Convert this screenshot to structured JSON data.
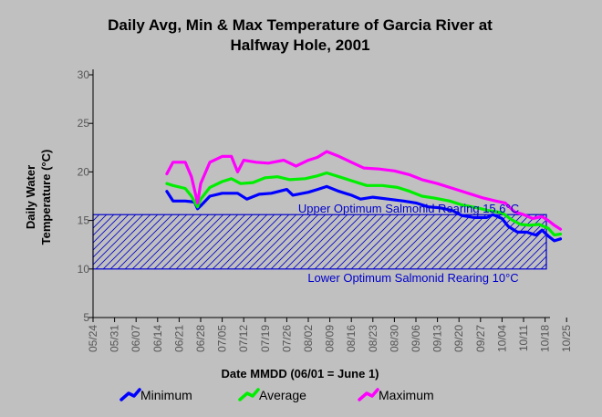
{
  "chart_data": {
    "type": "line",
    "title_line1": "Daily Avg, Min & Max Temperature of Garcia River at",
    "title_line2": "Halfway Hole, 2001",
    "xlabel": "Date MMDD (06/01 = June 1)",
    "ylabel_line1": "Daily Water",
    "ylabel_line2": "Temperature (°C)",
    "ylim": [
      5,
      30
    ],
    "yticks": [
      5,
      10,
      15,
      20,
      25,
      30
    ],
    "x_start": "05/24",
    "xtick_labels": [
      "05/24",
      "05/31",
      "06/07",
      "06/14",
      "06/21",
      "06/28",
      "07/05",
      "07/12",
      "07/19",
      "07/26",
      "08/02",
      "08/09",
      "08/16",
      "08/23",
      "08/30",
      "09/06",
      "09/13",
      "09/20",
      "09/27",
      "10/04",
      "10/11",
      "10/18",
      "10/25"
    ],
    "grid": false,
    "legend_position": "bottom",
    "band": {
      "upper": 15.6,
      "lower": 10,
      "upper_label": "Upper Optimum Salmonid Rearing 15.6°C",
      "lower_label": "Lower Optimum Salmonid Rearing 10°C",
      "color": "#0000cc"
    },
    "series": [
      {
        "name": "Minimum",
        "color": "#0000ff",
        "points": [
          [
            "06/17",
            18.0
          ],
          [
            "06/19",
            17.0
          ],
          [
            "06/23",
            17.0
          ],
          [
            "06/26",
            16.9
          ],
          [
            "06/27",
            16.2
          ],
          [
            "06/28",
            16.5
          ],
          [
            "07/01",
            17.5
          ],
          [
            "07/05",
            17.8
          ],
          [
            "07/10",
            17.8
          ],
          [
            "07/13",
            17.2
          ],
          [
            "07/17",
            17.7
          ],
          [
            "07/21",
            17.8
          ],
          [
            "07/26",
            18.2
          ],
          [
            "07/28",
            17.6
          ],
          [
            "08/02",
            17.9
          ],
          [
            "08/05",
            18.2
          ],
          [
            "08/08",
            18.5
          ],
          [
            "08/12",
            18.0
          ],
          [
            "08/16",
            17.6
          ],
          [
            "08/19",
            17.2
          ],
          [
            "08/23",
            17.4
          ],
          [
            "08/28",
            17.2
          ],
          [
            "09/02",
            17.0
          ],
          [
            "09/06",
            16.8
          ],
          [
            "09/10",
            16.4
          ],
          [
            "09/14",
            16.3
          ],
          [
            "09/18",
            16.0
          ],
          [
            "09/21",
            15.5
          ],
          [
            "09/25",
            15.3
          ],
          [
            "09/29",
            15.3
          ],
          [
            "10/01",
            15.6
          ],
          [
            "10/04",
            15.2
          ],
          [
            "10/06",
            14.4
          ],
          [
            "10/09",
            13.8
          ],
          [
            "10/12",
            13.8
          ],
          [
            "10/15",
            13.5
          ],
          [
            "10/17",
            14.0
          ],
          [
            "10/19",
            13.4
          ],
          [
            "10/21",
            12.9
          ],
          [
            "10/23",
            13.1
          ]
        ]
      },
      {
        "name": "Average",
        "color": "#00ee00",
        "points": [
          [
            "06/17",
            18.8
          ],
          [
            "06/19",
            18.6
          ],
          [
            "06/23",
            18.3
          ],
          [
            "06/25",
            17.5
          ],
          [
            "06/27",
            16.4
          ],
          [
            "06/28",
            17.2
          ],
          [
            "07/01",
            18.4
          ],
          [
            "07/05",
            19.0
          ],
          [
            "07/08",
            19.3
          ],
          [
            "07/11",
            18.8
          ],
          [
            "07/15",
            18.9
          ],
          [
            "07/19",
            19.4
          ],
          [
            "07/23",
            19.5
          ],
          [
            "07/27",
            19.2
          ],
          [
            "08/01",
            19.3
          ],
          [
            "08/05",
            19.6
          ],
          [
            "08/08",
            19.9
          ],
          [
            "08/12",
            19.5
          ],
          [
            "08/16",
            19.1
          ],
          [
            "08/21",
            18.6
          ],
          [
            "08/26",
            18.6
          ],
          [
            "08/31",
            18.4
          ],
          [
            "09/04",
            18.0
          ],
          [
            "09/08",
            17.5
          ],
          [
            "09/12",
            17.3
          ],
          [
            "09/17",
            17.0
          ],
          [
            "09/21",
            16.6
          ],
          [
            "09/26",
            16.3
          ],
          [
            "09/30",
            16.0
          ],
          [
            "10/04",
            15.8
          ],
          [
            "10/07",
            15.1
          ],
          [
            "10/10",
            14.6
          ],
          [
            "10/13",
            14.5
          ],
          [
            "10/16",
            14.6
          ],
          [
            "10/19",
            14.2
          ],
          [
            "10/21",
            13.5
          ],
          [
            "10/23",
            13.6
          ]
        ]
      },
      {
        "name": "Maximum",
        "color": "#ff00ff",
        "points": [
          [
            "06/17",
            19.8
          ],
          [
            "06/19",
            21.0
          ],
          [
            "06/23",
            21.0
          ],
          [
            "06/25",
            19.5
          ],
          [
            "06/27",
            16.8
          ],
          [
            "06/28",
            18.8
          ],
          [
            "07/01",
            21.0
          ],
          [
            "07/05",
            21.6
          ],
          [
            "07/08",
            21.6
          ],
          [
            "07/10",
            20.0
          ],
          [
            "07/12",
            21.2
          ],
          [
            "07/16",
            21.0
          ],
          [
            "07/20",
            20.9
          ],
          [
            "07/25",
            21.2
          ],
          [
            "07/29",
            20.6
          ],
          [
            "08/02",
            21.2
          ],
          [
            "08/05",
            21.5
          ],
          [
            "08/08",
            22.1
          ],
          [
            "08/12",
            21.6
          ],
          [
            "08/16",
            21.0
          ],
          [
            "08/20",
            20.4
          ],
          [
            "08/25",
            20.3
          ],
          [
            "08/30",
            20.1
          ],
          [
            "09/04",
            19.7
          ],
          [
            "09/08",
            19.2
          ],
          [
            "09/13",
            18.8
          ],
          [
            "09/18",
            18.3
          ],
          [
            "09/23",
            17.8
          ],
          [
            "09/28",
            17.3
          ],
          [
            "10/02",
            17.0
          ],
          [
            "10/05",
            16.8
          ],
          [
            "10/08",
            15.9
          ],
          [
            "10/11",
            15.6
          ],
          [
            "10/14",
            15.2
          ],
          [
            "10/17",
            15.4
          ],
          [
            "10/19",
            15.0
          ],
          [
            "10/21",
            14.5
          ],
          [
            "10/23",
            14.1
          ]
        ]
      }
    ]
  }
}
